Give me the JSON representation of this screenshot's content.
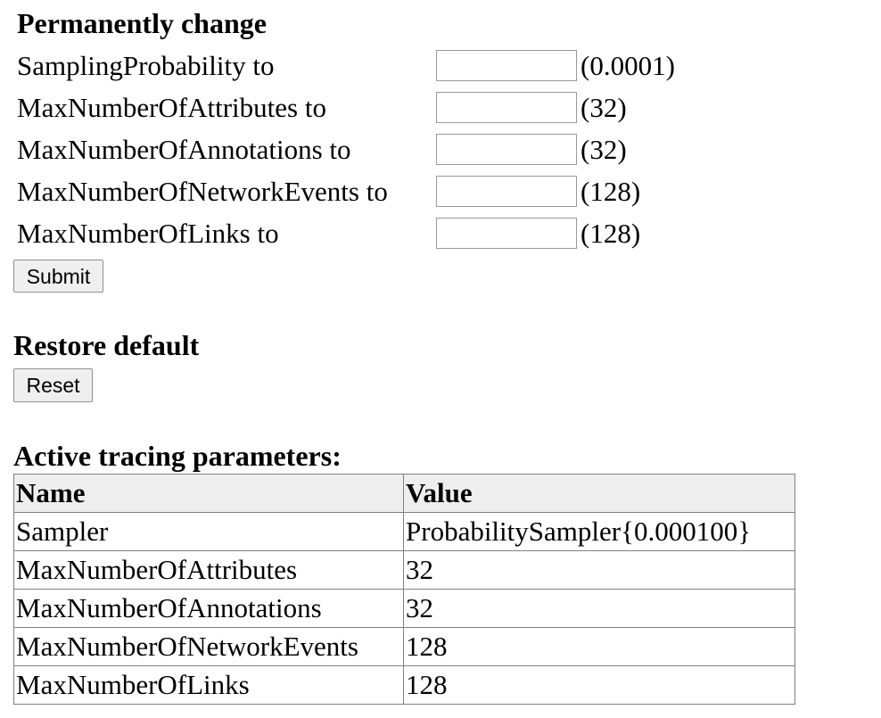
{
  "change_section": {
    "title": "Permanently change",
    "params": [
      {
        "label": "SamplingProbability to",
        "value": "",
        "default": "(0.0001)"
      },
      {
        "label": "MaxNumberOfAttributes to",
        "value": "",
        "default": "(32)"
      },
      {
        "label": "MaxNumberOfAnnotations to",
        "value": "",
        "default": "(32)"
      },
      {
        "label": "MaxNumberOfNetworkEvents to",
        "value": "",
        "default": "(128)"
      },
      {
        "label": "MaxNumberOfLinks to",
        "value": "",
        "default": "(128)"
      }
    ],
    "submit_label": "Submit"
  },
  "restore_section": {
    "title": "Restore default",
    "reset_label": "Reset"
  },
  "active_section": {
    "title": "Active tracing parameters:",
    "columns": [
      "Name",
      "Value"
    ],
    "rows": [
      {
        "name": "Sampler",
        "value": "ProbabilitySampler{0.000100}"
      },
      {
        "name": "MaxNumberOfAttributes",
        "value": "32"
      },
      {
        "name": "MaxNumberOfAnnotations",
        "value": "32"
      },
      {
        "name": "MaxNumberOfNetworkEvents",
        "value": "128"
      },
      {
        "name": "MaxNumberOfLinks",
        "value": "128"
      }
    ]
  }
}
